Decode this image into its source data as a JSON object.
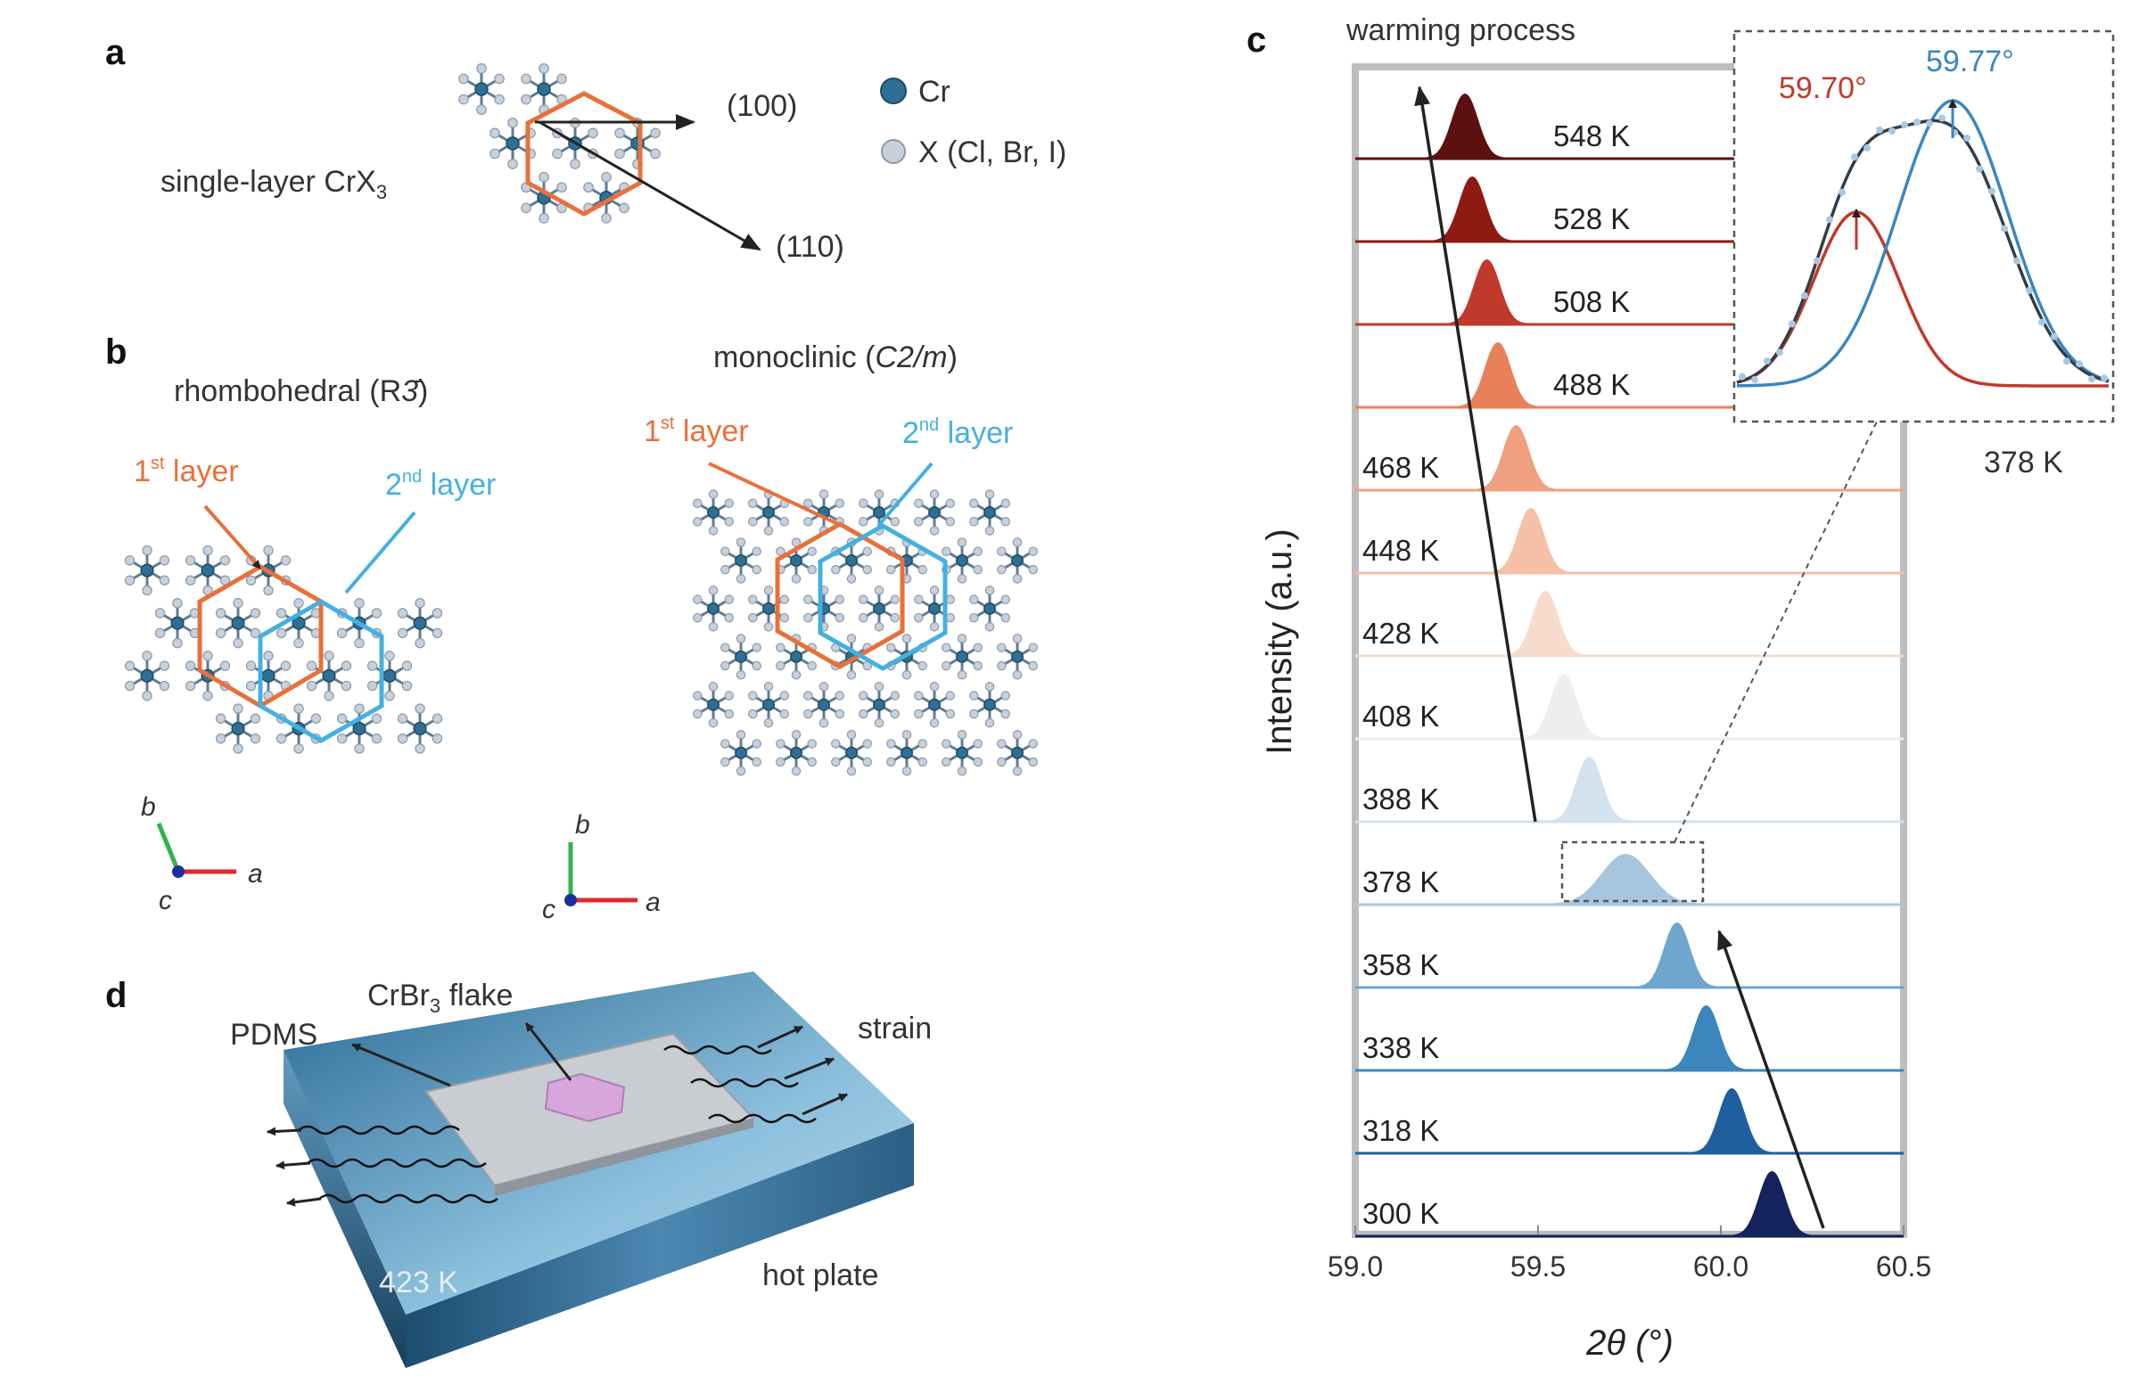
{
  "panels": {
    "a": {
      "letter": "a",
      "caption": "single-layer CrX",
      "caption_sub": "3",
      "dir_100": "(100)",
      "dir_110": "(110)",
      "legend_cr": "Cr",
      "legend_x": "X (Cl, Br, I)",
      "colors": {
        "cr": "#2f6f93",
        "x": "#c7d1dc",
        "hex": "#e8703a",
        "arrow": "#333333"
      }
    },
    "b": {
      "letter": "b",
      "left_title": "rhombohedral (R",
      "left_title_sym": "3̄",
      "left_title_end": ")",
      "right_title": "monoclinic (",
      "right_title_ital": "C2/m",
      "right_title_end": ")",
      "first_layer": "1",
      "first_sup": "st",
      "second_layer": "2",
      "second_sup": "nd",
      "layer_word": " layer",
      "axis_a": "a",
      "axis_b": "b",
      "axis_c": "c",
      "colors": {
        "layer1": "#e8703a",
        "layer2": "#45b0e0"
      }
    },
    "c": {
      "letter": "c",
      "title": "warming process",
      "ylabel": "Intensity (a.u.)",
      "xlabel": "2θ (°)",
      "inset": {
        "peak_left": "59.70°",
        "peak_right": "59.77°",
        "temp": "378 K",
        "colors": {
          "left": "#c0392b",
          "right": "#3a86c0",
          "sum": "#333d48"
        }
      }
    },
    "d": {
      "letter": "d",
      "pdms": "PDMS",
      "flake": "CrBr",
      "flake_sub": "3",
      "flake_end": " flake",
      "strain": "strain",
      "hot_plate": "hot plate",
      "temp": "423 K",
      "colors": {
        "plate": "#3f7fa8",
        "pdms": "#c9cdd1",
        "flake": "#d6a6dd"
      }
    }
  },
  "chart_data": {
    "type": "area",
    "title": "warming process",
    "xlabel": "2θ (°)",
    "ylabel": "Intensity (a.u.)",
    "xlim": [
      59.0,
      60.5
    ],
    "xticks": [
      "59.0",
      "59.5",
      "60.0",
      "60.5"
    ],
    "series": [
      {
        "name": "548 K",
        "peak": 59.3,
        "color": "#5c1010"
      },
      {
        "name": "528 K",
        "peak": 59.32,
        "color": "#8e1a12"
      },
      {
        "name": "508 K",
        "peak": 59.36,
        "color": "#c0392b"
      },
      {
        "name": "488 K",
        "peak": 59.39,
        "color": "#e8805a"
      },
      {
        "name": "468 K",
        "peak": 59.44,
        "color": "#f0a07e"
      },
      {
        "name": "448 K",
        "peak": 59.48,
        "color": "#f5c0a6"
      },
      {
        "name": "428 K",
        "peak": 59.52,
        "color": "#f7dccd"
      },
      {
        "name": "408 K",
        "peak": 59.57,
        "color": "#eeeeee"
      },
      {
        "name": "388 K",
        "peak": 59.64,
        "color": "#d2e2ef"
      },
      {
        "name": "378 K",
        "peak": 59.74,
        "color": "#a6c6df"
      },
      {
        "name": "358 K",
        "peak": 59.88,
        "color": "#6fa6cd"
      },
      {
        "name": "338 K",
        "peak": 59.96,
        "color": "#3d86bd"
      },
      {
        "name": "318 K",
        "peak": 60.03,
        "color": "#1f5fa0"
      },
      {
        "name": "300 K",
        "peak": 60.14,
        "color": "#15235c"
      }
    ]
  }
}
